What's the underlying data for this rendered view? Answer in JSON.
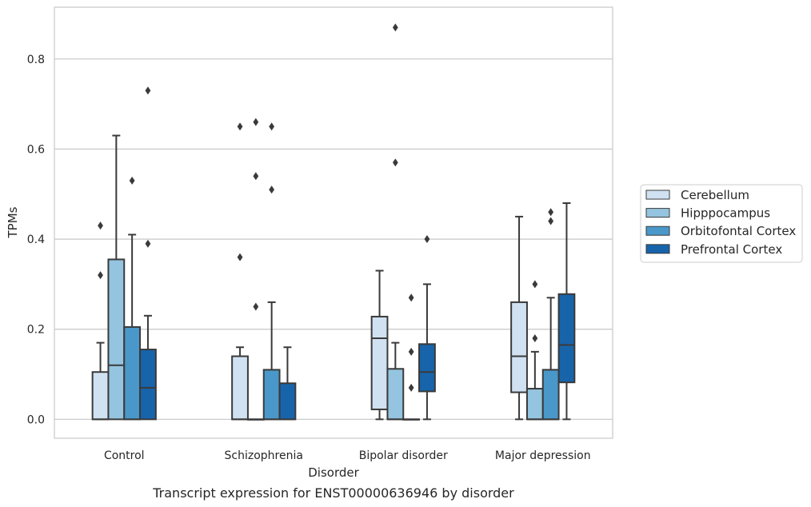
{
  "chart_data": {
    "type": "box",
    "caption": "Transcript expression for ENST00000636946 by disorder",
    "xlabel": "Disorder",
    "ylabel": "TPMs",
    "categories": [
      "Control",
      "Schizophrenia",
      "Bipolar disorder",
      "Major depression"
    ],
    "yticks": [
      "0.0",
      "0.2",
      "0.4",
      "0.6",
      "0.8"
    ],
    "ylim": [
      -0.042,
      0.915
    ],
    "grid": "horizontal",
    "legend_position": "right",
    "series": [
      {
        "name": "Cerebellum",
        "color": "#d0e1f2",
        "boxes": [
          {
            "q1": 0.0,
            "median": 0.0,
            "q3": 0.105,
            "whislo": 0.0,
            "whishi": 0.17,
            "fliers": [
              0.32,
              0.43
            ]
          },
          {
            "q1": 0.0,
            "median": 0.0,
            "q3": 0.14,
            "whislo": 0.0,
            "whishi": 0.16,
            "fliers": [
              0.36,
              0.65
            ]
          },
          {
            "q1": 0.022,
            "median": 0.18,
            "q3": 0.228,
            "whislo": 0.0,
            "whishi": 0.33,
            "fliers": []
          },
          {
            "q1": 0.06,
            "median": 0.14,
            "q3": 0.26,
            "whislo": 0.0,
            "whishi": 0.45,
            "fliers": []
          }
        ]
      },
      {
        "name": "Hipppocampus",
        "color": "#94c4df",
        "boxes": [
          {
            "q1": 0.0,
            "median": 0.12,
            "q3": 0.355,
            "whislo": 0.0,
            "whishi": 0.63,
            "fliers": []
          },
          {
            "q1": 0.0,
            "median": 0.0,
            "q3": 0.0,
            "whislo": 0.0,
            "whishi": 0.0,
            "fliers": [
              0.25,
              0.54,
              0.66
            ]
          },
          {
            "q1": 0.0,
            "median": 0.0,
            "q3": 0.112,
            "whislo": 0.0,
            "whishi": 0.17,
            "fliers": [
              0.57,
              0.87
            ]
          },
          {
            "q1": 0.0,
            "median": 0.0,
            "q3": 0.068,
            "whislo": 0.0,
            "whishi": 0.15,
            "fliers": [
              0.18,
              0.3
            ]
          }
        ]
      },
      {
        "name": "Orbitofontal Cortex",
        "color": "#4a98c9",
        "boxes": [
          {
            "q1": 0.0,
            "median": 0.0,
            "q3": 0.205,
            "whislo": 0.0,
            "whishi": 0.41,
            "fliers": [
              0.53
            ]
          },
          {
            "q1": 0.0,
            "median": 0.0,
            "q3": 0.11,
            "whislo": 0.0,
            "whishi": 0.26,
            "fliers": [
              0.51,
              0.65
            ]
          },
          {
            "q1": 0.0,
            "median": 0.0,
            "q3": 0.0,
            "whislo": 0.0,
            "whishi": 0.0,
            "fliers": [
              0.07,
              0.15,
              0.27
            ]
          },
          {
            "q1": 0.0,
            "median": 0.0,
            "q3": 0.11,
            "whislo": 0.0,
            "whishi": 0.27,
            "fliers": [
              0.44,
              0.46
            ]
          }
        ]
      },
      {
        "name": "Prefrontal Cortex",
        "color": "#1764ab",
        "boxes": [
          {
            "q1": 0.0,
            "median": 0.07,
            "q3": 0.155,
            "whislo": 0.0,
            "whishi": 0.23,
            "fliers": [
              0.39,
              0.73
            ]
          },
          {
            "q1": 0.0,
            "median": 0.0,
            "q3": 0.08,
            "whislo": 0.0,
            "whishi": 0.16,
            "fliers": []
          },
          {
            "q1": 0.062,
            "median": 0.105,
            "q3": 0.167,
            "whislo": 0.0,
            "whishi": 0.3,
            "fliers": [
              0.4
            ]
          },
          {
            "q1": 0.082,
            "median": 0.165,
            "q3": 0.278,
            "whislo": 0.0,
            "whishi": 0.48,
            "fliers": []
          }
        ]
      }
    ]
  }
}
